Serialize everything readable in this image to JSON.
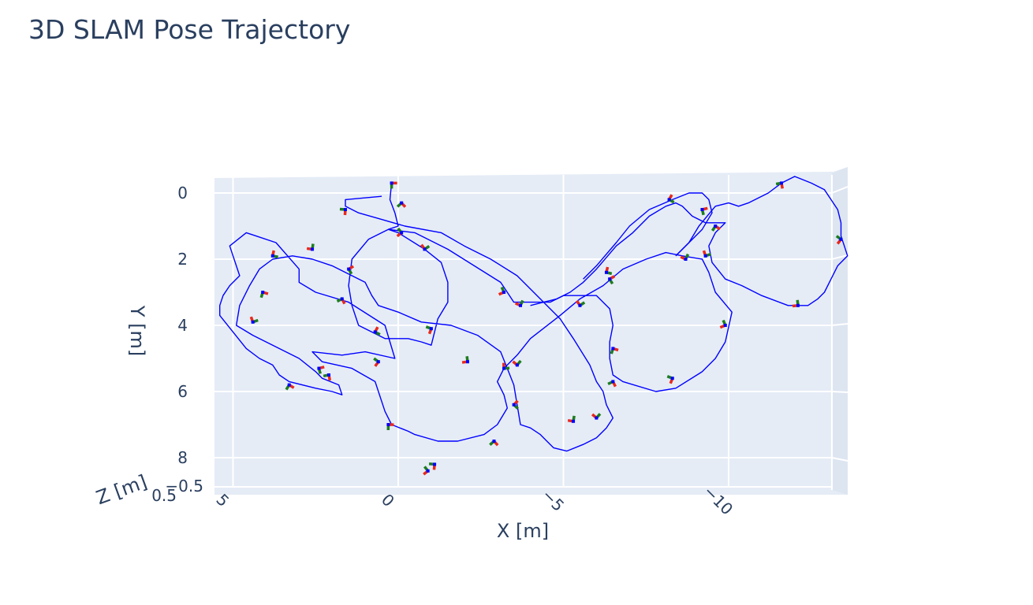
{
  "chart_data": {
    "type": "line",
    "title": "3D SLAM Pose Trajectory",
    "xlabel": "X [m]",
    "ylabel": "Y [m]",
    "zlabel": "Z [m]",
    "x_ticks": [
      "5",
      "0",
      "−5",
      "−10"
    ],
    "y_ticks": [
      "0",
      "2",
      "4",
      "6",
      "8"
    ],
    "z_ticks": [
      "0.5",
      "−0.5"
    ],
    "camera": "top-down view, x axis reversed (x decreases to the right), y increases downward",
    "xlim": [
      4.8,
      -13.6
    ],
    "ylim": [
      -0.5,
      8.8
    ],
    "grid": true,
    "colors": {
      "trajectory": "#0000ff",
      "x_axis_marker": "#e8291c",
      "y_axis_marker": "#1e7d1e",
      "z_axis_marker": "#0000ff",
      "scene_background": "#e5ecf6",
      "grid": "#ffffff"
    },
    "series": [
      {
        "mode": "lines",
        "points": [
          [
            0.2,
            -0.3
          ],
          [
            0.25,
            0.2
          ],
          [
            0.1,
            0.6
          ],
          [
            0.0,
            1.0
          ],
          [
            0.3,
            1.1
          ],
          [
            0.0,
            1.2
          ],
          [
            -0.8,
            1.7
          ],
          [
            -1.3,
            2.1
          ],
          [
            -1.5,
            2.7
          ],
          [
            -1.5,
            3.3
          ],
          [
            -1.2,
            3.8
          ],
          [
            -1.0,
            4.6
          ],
          [
            -0.7,
            4.5
          ],
          [
            -0.3,
            4.4
          ],
          [
            0.4,
            4.4
          ],
          [
            1.2,
            4.0
          ],
          [
            1.4,
            3.4
          ],
          [
            1.5,
            2.8
          ],
          [
            1.4,
            2.0
          ],
          [
            0.9,
            1.4
          ],
          [
            0.3,
            1.1
          ],
          [
            -0.5,
            1.2
          ],
          [
            -1.5,
            1.7
          ],
          [
            -3.1,
            2.7
          ],
          [
            -3.3,
            3.0
          ],
          [
            -3.5,
            3.3
          ],
          [
            -4.0,
            3.3
          ],
          [
            -4.6,
            3.3
          ],
          [
            -5.0,
            3.1
          ],
          [
            -6.0,
            3.1
          ],
          [
            -6.2,
            3.3
          ],
          [
            -6.4,
            3.5
          ],
          [
            -6.5,
            4.0
          ],
          [
            -6.4,
            4.5
          ],
          [
            -6.4,
            5.0
          ],
          [
            -6.5,
            5.5
          ],
          [
            -6.8,
            5.7
          ],
          [
            -7.8,
            6.0
          ],
          [
            -8.4,
            5.9
          ],
          [
            -9.2,
            5.4
          ],
          [
            -9.6,
            5.0
          ],
          [
            -9.9,
            4.5
          ],
          [
            -10.1,
            3.6
          ],
          [
            -9.6,
            3.0
          ],
          [
            -9.4,
            2.4
          ],
          [
            -9.2,
            2.0
          ],
          [
            -8.6,
            1.9
          ],
          [
            -8.1,
            1.8
          ],
          [
            -7.5,
            2.0
          ],
          [
            -6.8,
            2.3
          ],
          [
            -6.2,
            2.8
          ],
          [
            -5.5,
            3.2
          ],
          [
            -4.9,
            3.7
          ],
          [
            -4.0,
            4.4
          ],
          [
            -3.6,
            4.9
          ],
          [
            -3.2,
            5.3
          ],
          [
            -3.0,
            5.7
          ],
          [
            -3.2,
            6.1
          ],
          [
            -3.3,
            6.5
          ],
          [
            -3.0,
            7.0
          ],
          [
            -2.6,
            7.3
          ],
          [
            -1.8,
            7.5
          ],
          [
            -1.2,
            7.5
          ],
          [
            -0.5,
            7.3
          ],
          [
            -0.3,
            7.2
          ],
          [
            0.2,
            7.0
          ],
          [
            0.4,
            6.6
          ],
          [
            0.7,
            5.7
          ],
          [
            1.4,
            5.3
          ],
          [
            2.3,
            5.1
          ],
          [
            2.6,
            4.8
          ],
          [
            1.7,
            4.9
          ],
          [
            1.0,
            4.8
          ],
          [
            0.1,
            5.0
          ],
          [
            0.4,
            4.0
          ],
          [
            1.5,
            3.3
          ],
          [
            2.5,
            3.0
          ],
          [
            3.0,
            2.7
          ],
          [
            3.0,
            2.3
          ],
          [
            3.7,
            1.5
          ],
          [
            4.3,
            1.3
          ],
          [
            4.6,
            1.2
          ],
          [
            5.1,
            1.6
          ],
          [
            4.8,
            2.5
          ],
          [
            5.1,
            2.8
          ],
          [
            5.3,
            3.1
          ],
          [
            5.4,
            3.4
          ],
          [
            5.4,
            3.7
          ],
          [
            5.0,
            4.2
          ],
          [
            4.6,
            4.7
          ],
          [
            4.2,
            5.0
          ],
          [
            3.8,
            5.2
          ],
          [
            3.6,
            5.5
          ],
          [
            3.3,
            5.7
          ],
          [
            2.5,
            5.9
          ],
          [
            2.0,
            6.0
          ],
          [
            1.7,
            6.1
          ],
          [
            1.8,
            5.8
          ],
          [
            2.3,
            5.6
          ],
          [
            2.5,
            5.4
          ],
          [
            3.0,
            5.0
          ],
          [
            4.4,
            4.3
          ],
          [
            4.9,
            4.0
          ],
          [
            4.8,
            3.4
          ],
          [
            4.5,
            2.8
          ],
          [
            4.2,
            2.3
          ],
          [
            3.8,
            2.0
          ],
          [
            3.2,
            1.9
          ],
          [
            2.6,
            2.0
          ],
          [
            2.0,
            2.2
          ],
          [
            1.0,
            2.7
          ],
          [
            0.8,
            3.1
          ],
          [
            0.6,
            3.4
          ],
          [
            0.0,
            3.6
          ],
          [
            -0.7,
            3.9
          ],
          [
            -1.6,
            4.0
          ],
          [
            -2.4,
            4.3
          ],
          [
            -3.1,
            4.8
          ],
          [
            -3.3,
            5.3
          ],
          [
            -3.5,
            5.8
          ],
          [
            -3.6,
            6.4
          ],
          [
            -3.7,
            7.0
          ],
          [
            -4.0,
            7.1
          ],
          [
            -4.3,
            7.3
          ],
          [
            -4.5,
            7.5
          ],
          [
            -4.7,
            7.7
          ],
          [
            -5.1,
            7.8
          ],
          [
            -5.6,
            7.6
          ],
          [
            -6.0,
            7.4
          ],
          [
            -6.3,
            7.1
          ],
          [
            -6.5,
            6.8
          ],
          [
            -6.3,
            6.4
          ],
          [
            -6.2,
            6.0
          ],
          [
            -6.0,
            5.7
          ],
          [
            -5.8,
            5.2
          ],
          [
            -5.3,
            4.4
          ],
          [
            -4.9,
            3.8
          ],
          [
            -4.1,
            3.0
          ],
          [
            -3.6,
            2.5
          ],
          [
            -2.8,
            2.0
          ],
          [
            -2.0,
            1.6
          ],
          [
            -1.3,
            1.2
          ],
          [
            -0.2,
            1.0
          ],
          [
            0.5,
            0.8
          ],
          [
            1.2,
            0.6
          ],
          [
            1.6,
            0.4
          ],
          [
            1.6,
            0.2
          ],
          [
            0.5,
            0.1
          ]
        ]
      },
      {
        "mode": "lines",
        "points": [
          [
            -8.4,
            1.9
          ],
          [
            -8.8,
            1.5
          ],
          [
            -9.1,
            1.0
          ],
          [
            -9.6,
            0.4
          ],
          [
            -10.0,
            0.3
          ],
          [
            -10.3,
            0.4
          ],
          [
            -10.6,
            0.3
          ],
          [
            -11.2,
            0.0
          ],
          [
            -11.6,
            -0.3
          ],
          [
            -12.0,
            -0.5
          ],
          [
            -12.5,
            -0.3
          ],
          [
            -12.9,
            -0.1
          ],
          [
            -13.1,
            0.2
          ],
          [
            -13.3,
            0.5
          ],
          [
            -13.4,
            0.9
          ],
          [
            -13.4,
            1.3
          ],
          [
            -13.5,
            1.6
          ],
          [
            -13.6,
            1.9
          ],
          [
            -13.3,
            2.2
          ],
          [
            -13.1,
            2.6
          ],
          [
            -12.9,
            3.0
          ],
          [
            -12.7,
            3.2
          ],
          [
            -12.4,
            3.4
          ],
          [
            -11.8,
            3.4
          ],
          [
            -11.0,
            3.1
          ],
          [
            -10.4,
            2.8
          ],
          [
            -9.9,
            2.6
          ],
          [
            -9.5,
            2.1
          ],
          [
            -9.4,
            1.6
          ],
          [
            -9.6,
            1.2
          ],
          [
            -9.9,
            0.9
          ],
          [
            -9.3,
            0.9
          ],
          [
            -8.9,
            0.7
          ],
          [
            -8.6,
            0.4
          ],
          [
            -8.4,
            0.3
          ],
          [
            -8.1,
            0.4
          ],
          [
            -7.6,
            0.7
          ],
          [
            -7.1,
            1.2
          ],
          [
            -6.6,
            1.6
          ],
          [
            -6.0,
            2.3
          ],
          [
            -5.6,
            2.7
          ],
          [
            -5.2,
            3.0
          ],
          [
            -4.8,
            3.2
          ],
          [
            -4.4,
            3.3
          ],
          [
            -4.0,
            3.4
          ]
        ]
      },
      {
        "mode": "lines",
        "points": [
          [
            -8.4,
            1.9
          ],
          [
            -9.2,
            1.1
          ],
          [
            -9.5,
            0.6
          ],
          [
            -9.4,
            0.2
          ],
          [
            -9.2,
            0.0
          ],
          [
            -8.8,
            0.0
          ],
          [
            -8.3,
            0.2
          ],
          [
            -7.6,
            0.5
          ],
          [
            -7.0,
            1.0
          ],
          [
            -6.6,
            1.5
          ],
          [
            -6.0,
            2.2
          ],
          [
            -5.6,
            2.6
          ]
        ]
      }
    ],
    "pose_markers": [
      [
        0.2,
        -0.3
      ],
      [
        -0.1,
        0.3
      ],
      [
        1.6,
        0.5
      ],
      [
        -0.1,
        1.2
      ],
      [
        2.6,
        1.7
      ],
      [
        -0.8,
        1.7
      ],
      [
        3.8,
        1.9
      ],
      [
        1.5,
        2.3
      ],
      [
        4.1,
        3.0
      ],
      [
        1.7,
        3.2
      ],
      [
        -1.0,
        4.1
      ],
      [
        -3.2,
        3.0
      ],
      [
        -3.7,
        3.4
      ],
      [
        4.4,
        3.9
      ],
      [
        0.7,
        4.2
      ],
      [
        2.4,
        5.3
      ],
      [
        3.3,
        5.8
      ],
      [
        2.1,
        5.5
      ],
      [
        0.6,
        5.1
      ],
      [
        -2.1,
        5.1
      ],
      [
        -3.6,
        5.2
      ],
      [
        -3.2,
        5.3
      ],
      [
        -3.5,
        6.4
      ],
      [
        0.3,
        7.0
      ],
      [
        -2.9,
        7.5
      ],
      [
        -1.1,
        8.2
      ],
      [
        -0.9,
        8.4
      ],
      [
        -5.3,
        6.9
      ],
      [
        -5.5,
        3.4
      ],
      [
        -6.3,
        2.4
      ],
      [
        -6.4,
        2.6
      ],
      [
        -6.5,
        4.7
      ],
      [
        -6.5,
        5.7
      ],
      [
        -8.3,
        5.6
      ],
      [
        -9.9,
        4.0
      ],
      [
        -8.7,
        2.0
      ],
      [
        -9.3,
        1.9
      ],
      [
        -8.2,
        0.2
      ],
      [
        -9.2,
        0.5
      ],
      [
        -9.6,
        1.0
      ],
      [
        -11.6,
        -0.3
      ],
      [
        -13.4,
        1.4
      ],
      [
        -12.1,
        3.4
      ],
      [
        -6.0,
        6.8
      ]
    ]
  }
}
